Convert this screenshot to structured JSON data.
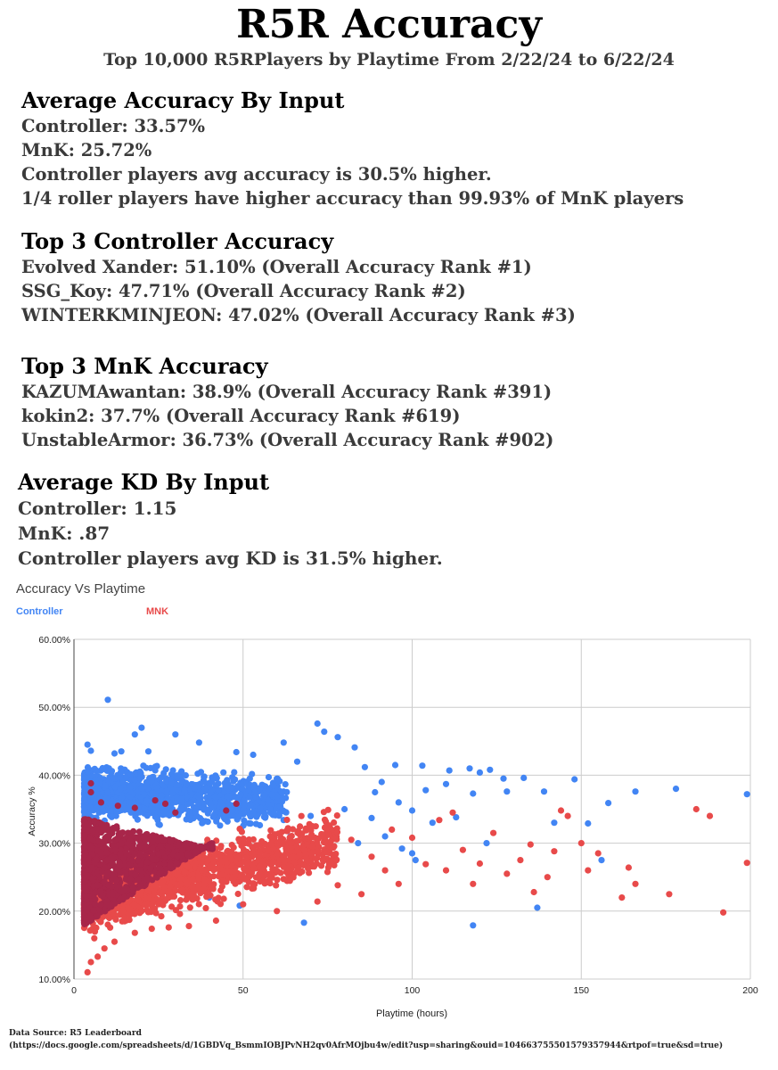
{
  "header": {
    "title": "R5R Accuracy",
    "subtitle": "Top 10,000 R5RPlayers by Playtime From 2/22/24 to 6/22/24"
  },
  "avg_accuracy": {
    "heading": "Average Accuracy By Input",
    "lines": [
      "Controller: 33.57%",
      "MnK: 25.72%",
      "Controller players avg accuracy is 30.5% higher.",
      "1/4 roller players have higher accuracy than 99.93% of MnK players"
    ]
  },
  "top_controller": {
    "heading": "Top 3 Controller Accuracy",
    "lines": [
      "Evolved Xander: 51.10% (Overall Accuracy Rank #1)",
      "SSG_Koy: 47.71% (Overall Accuracy Rank #2)",
      "WINTERKMINJEON: 47.02% (Overall Accuracy Rank #3)"
    ]
  },
  "top_mnk": {
    "heading": "Top 3 MnK Accuracy",
    "lines": [
      "KAZUMAwantan: 38.9% (Overall Accuracy Rank #391)",
      "kokin2: 37.7% (Overall Accuracy Rank #619)",
      "UnstableArmor: 36.73% (Overall Accuracy Rank #902)"
    ]
  },
  "avg_kd": {
    "heading": "Average KD By Input",
    "lines": [
      "Controller: 1.15",
      "MnK: .87",
      "Controller players avg KD is 31.5% higher."
    ]
  },
  "footer": {
    "source_line1": "Data Source: R5 Leaderboard",
    "source_line2": "(https://docs.google.com/spreadsheets/d/1GBDVq_BsmmIOBJPvNH2qv0AfrMOjbu4w/edit?usp=sharing&ouid=104663755501579357944&rtpof=true&sd=true)"
  },
  "colors": {
    "controller": "#4285f4",
    "mnk": "#e84a4a",
    "overlap": "#a8264a",
    "grid": "#cccccc"
  },
  "chart_data": {
    "type": "scatter",
    "title": "Accuracy Vs Playtime",
    "xlabel": "Playtime (hours)",
    "ylabel": "Accuracy %",
    "xlim": [
      0,
      200
    ],
    "ylim": [
      0.1,
      0.6
    ],
    "x_ticks": [
      "0",
      "50",
      "100",
      "150",
      "200"
    ],
    "y_ticks": [
      "10.00%",
      "20.00%",
      "30.00%",
      "40.00%",
      "50.00%",
      "60.00%"
    ],
    "grid": true,
    "legend": [
      "Controller",
      "MNK"
    ],
    "legend_position": "top-left",
    "series": [
      {
        "name": "Controller",
        "color": "#4285f4",
        "points": [
          [
            10,
            51.1
          ],
          [
            20,
            47.0
          ],
          [
            30,
            46.0
          ],
          [
            18,
            46.0
          ],
          [
            37,
            44.8
          ],
          [
            4,
            44.5
          ],
          [
            5,
            43.6
          ],
          [
            14,
            43.5
          ],
          [
            22,
            43.5
          ],
          [
            12,
            43.2
          ],
          [
            48,
            43.4
          ],
          [
            53,
            43.0
          ],
          [
            62,
            44.8
          ],
          [
            72,
            47.6
          ],
          [
            74,
            46.4
          ],
          [
            78,
            45.6
          ],
          [
            83,
            44.1
          ],
          [
            66,
            42.0
          ],
          [
            95,
            41.5
          ],
          [
            86,
            41.2
          ],
          [
            103,
            41.4
          ],
          [
            111,
            40.7
          ],
          [
            117,
            41.0
          ],
          [
            123,
            40.8
          ],
          [
            127,
            39.5
          ],
          [
            120,
            40.4
          ],
          [
            139,
            37.6
          ],
          [
            148,
            39.4
          ],
          [
            166,
            37.6
          ],
          [
            178,
            38.0
          ],
          [
            199,
            37.2
          ],
          [
            158,
            35.9
          ],
          [
            133,
            39.6
          ],
          [
            128,
            37.6
          ],
          [
            110,
            38.7
          ],
          [
            118,
            37.3
          ],
          [
            104,
            37.8
          ],
          [
            91,
            39.0
          ],
          [
            89,
            37.5
          ],
          [
            96,
            36.0
          ],
          [
            100,
            34.8
          ],
          [
            106,
            33.0
          ],
          [
            113,
            33.8
          ],
          [
            122,
            30.0
          ],
          [
            142,
            33.0
          ],
          [
            152,
            32.9
          ],
          [
            156,
            27.5
          ],
          [
            137,
            20.5
          ],
          [
            118,
            17.9
          ],
          [
            68,
            18.3
          ],
          [
            100,
            28.5
          ],
          [
            55,
            38.0
          ],
          [
            58,
            35.0
          ],
          [
            60,
            36.8
          ],
          [
            62,
            33.4
          ],
          [
            64,
            31.0
          ],
          [
            70,
            34.0
          ],
          [
            75,
            32.5
          ],
          [
            80,
            35.0
          ],
          [
            84,
            30.0
          ],
          [
            88,
            33.7
          ],
          [
            92,
            31.0
          ],
          [
            97,
            29.2
          ],
          [
            101,
            27.5
          ],
          [
            49,
            20.8
          ],
          [
            40,
            22.0
          ],
          [
            45,
            25.0
          ]
        ],
        "dense_region": {
          "x_range": [
            3,
            50
          ],
          "y_range": [
            32,
            43
          ],
          "approx_points": 2500
        }
      },
      {
        "name": "MNK",
        "color": "#e84a4a",
        "points": [
          [
            4,
            11.0
          ],
          [
            5,
            12.5
          ],
          [
            7,
            13.3
          ],
          [
            9,
            14.5
          ],
          [
            12,
            15.5
          ],
          [
            18,
            16.8
          ],
          [
            23,
            17.4
          ],
          [
            28,
            17.6
          ],
          [
            34,
            17.8
          ],
          [
            42,
            18.6
          ],
          [
            50,
            21.0
          ],
          [
            60,
            20.0
          ],
          [
            72,
            21.4
          ],
          [
            78,
            23.8
          ],
          [
            85,
            22.5
          ],
          [
            92,
            26.0
          ],
          [
            96,
            24.0
          ],
          [
            104,
            26.9
          ],
          [
            110,
            26.0
          ],
          [
            115,
            29.0
          ],
          [
            120,
            27.0
          ],
          [
            128,
            25.5
          ],
          [
            132,
            27.5
          ],
          [
            135,
            29.8
          ],
          [
            140,
            25.0
          ],
          [
            144,
            34.8
          ],
          [
            146,
            34.0
          ],
          [
            150,
            30.0
          ],
          [
            152,
            26.0
          ],
          [
            155,
            28.5
          ],
          [
            162,
            22.0
          ],
          [
            164,
            26.4
          ],
          [
            166,
            24.0
          ],
          [
            176,
            22.5
          ],
          [
            184,
            35.0
          ],
          [
            188,
            34.0
          ],
          [
            192,
            19.8
          ],
          [
            199,
            27.1
          ],
          [
            118,
            24.0
          ],
          [
            124,
            31.5
          ],
          [
            136,
            22.8
          ],
          [
            142,
            28.8
          ],
          [
            82,
            30.5
          ],
          [
            88,
            28.0
          ],
          [
            94,
            32.0
          ],
          [
            100,
            30.8
          ],
          [
            108,
            33.4
          ],
          [
            112,
            34.5
          ],
          [
            76,
            27.0
          ],
          [
            66,
            29.5
          ],
          [
            58,
            31.0
          ],
          [
            56,
            24.5
          ],
          [
            62,
            26.5
          ],
          [
            70,
            32.5
          ],
          [
            46,
            28.0
          ],
          [
            38,
            26.0
          ],
          [
            30,
            23.0
          ],
          [
            25,
            21.0
          ],
          [
            20,
            20.0
          ],
          [
            15,
            19.0
          ],
          [
            10,
            18.0
          ],
          [
            6,
            16.0
          ]
        ],
        "dense_region": {
          "x_range": [
            3,
            60
          ],
          "y_range": [
            16,
            33
          ],
          "approx_points": 5500
        }
      }
    ]
  }
}
